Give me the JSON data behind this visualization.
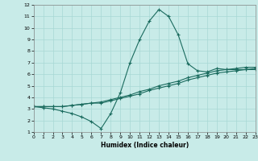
{
  "xlabel": "Humidex (Indice chaleur)",
  "ylabel": "",
  "xlim": [
    0,
    23
  ],
  "ylim": [
    1,
    12
  ],
  "xticks": [
    0,
    1,
    2,
    3,
    4,
    5,
    6,
    7,
    8,
    9,
    10,
    11,
    12,
    13,
    14,
    15,
    16,
    17,
    18,
    19,
    20,
    21,
    22,
    23
  ],
  "yticks": [
    1,
    2,
    3,
    4,
    5,
    6,
    7,
    8,
    9,
    10,
    11,
    12
  ],
  "background_color": "#c8ebe8",
  "grid_color": "#a8d8d4",
  "line_color": "#1a6b5e",
  "line1_x": [
    0,
    1,
    2,
    3,
    4,
    5,
    6,
    7,
    8,
    9,
    10,
    11,
    12,
    13,
    14,
    15,
    16,
    17,
    18,
    19,
    20,
    21,
    22,
    23
  ],
  "line1_y": [
    3.2,
    3.1,
    3.0,
    2.8,
    2.6,
    2.3,
    1.9,
    1.3,
    2.6,
    4.4,
    7.0,
    9.0,
    10.6,
    11.6,
    11.0,
    9.4,
    6.9,
    6.3,
    6.2,
    6.5,
    6.4,
    6.4,
    6.4,
    6.4
  ],
  "line2_x": [
    0,
    1,
    2,
    3,
    4,
    5,
    6,
    7,
    8,
    9,
    10,
    11,
    12,
    13,
    14,
    15,
    16,
    17,
    18,
    19,
    20,
    21,
    22,
    23
  ],
  "line2_y": [
    3.2,
    3.2,
    3.2,
    3.2,
    3.3,
    3.4,
    3.5,
    3.6,
    3.8,
    4.0,
    4.2,
    4.5,
    4.7,
    5.0,
    5.2,
    5.4,
    5.7,
    5.9,
    6.1,
    6.3,
    6.4,
    6.5,
    6.6,
    6.6
  ],
  "line3_x": [
    0,
    1,
    2,
    3,
    4,
    5,
    6,
    7,
    8,
    9,
    10,
    11,
    12,
    13,
    14,
    15,
    16,
    17,
    18,
    19,
    20,
    21,
    22,
    23
  ],
  "line3_y": [
    3.2,
    3.2,
    3.2,
    3.2,
    3.3,
    3.4,
    3.5,
    3.5,
    3.7,
    3.9,
    4.1,
    4.3,
    4.6,
    4.8,
    5.0,
    5.2,
    5.5,
    5.7,
    5.9,
    6.1,
    6.2,
    6.3,
    6.4,
    6.5
  ]
}
